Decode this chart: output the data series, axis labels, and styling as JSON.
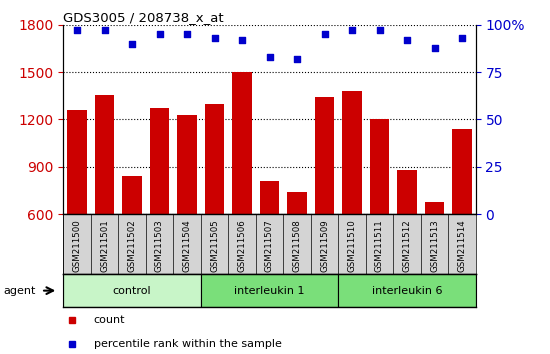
{
  "title": "GDS3005 / 208738_x_at",
  "samples": [
    "GSM211500",
    "GSM211501",
    "GSM211502",
    "GSM211503",
    "GSM211504",
    "GSM211505",
    "GSM211506",
    "GSM211507",
    "GSM211508",
    "GSM211509",
    "GSM211510",
    "GSM211511",
    "GSM211512",
    "GSM211513",
    "GSM211514"
  ],
  "counts": [
    1260,
    1355,
    840,
    1275,
    1230,
    1300,
    1500,
    810,
    740,
    1340,
    1380,
    1205,
    880,
    680,
    1140
  ],
  "percentile": [
    97,
    97,
    90,
    95,
    95,
    93,
    92,
    83,
    82,
    95,
    97,
    97,
    92,
    88,
    93
  ],
  "groups": [
    {
      "label": "control",
      "start": 0,
      "end": 5,
      "color": "#c8f5c8"
    },
    {
      "label": "interleukin 1",
      "start": 5,
      "end": 10,
      "color": "#7adf7a"
    },
    {
      "label": "interleukin 6",
      "start": 10,
      "end": 15,
      "color": "#7adf7a"
    }
  ],
  "ylim_left": [
    600,
    1800
  ],
  "ylim_right": [
    0,
    100
  ],
  "yticks_left": [
    600,
    900,
    1200,
    1500,
    1800
  ],
  "yticks_right": [
    0,
    25,
    50,
    75,
    100
  ],
  "bar_color": "#cc0000",
  "dot_color": "#0000cc",
  "axis_label_color_left": "#cc0000",
  "axis_label_color_right": "#0000cc",
  "grid_color": "#000000",
  "label_gray": "#d4d4d4",
  "label_gray_dark": "#c0c0c0"
}
